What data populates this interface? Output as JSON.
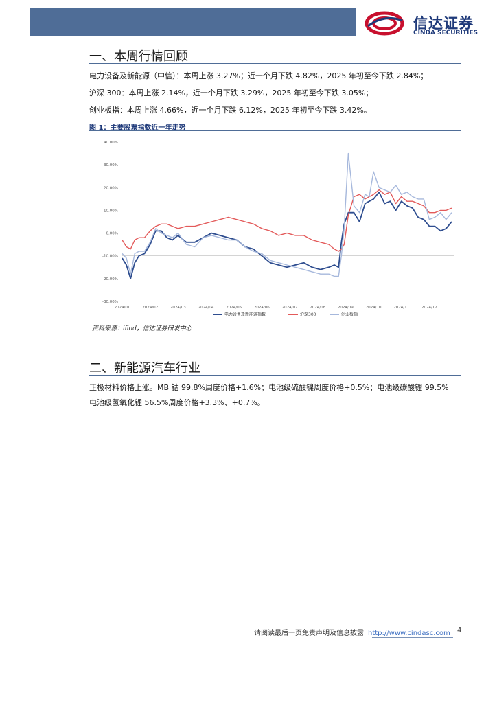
{
  "header": {
    "logo_cn": "信达证券",
    "logo_en": "CINDA SECURITIES"
  },
  "section1": {
    "title": "一、本周行情回顾",
    "lines": [
      "电力设备及新能源（中信）：本周上涨 3.27%；近一个月下跌 4.82%，2025 年初至今下跌 2.84%；",
      "沪深 300：本周上涨 2.14%，近一个月下跌 3.29%，2025 年初至今下跌 3.05%；",
      "创业板指：本周上涨 4.66%，近一个月下跌 6.12%，2025 年初至今下跌 3.42%。"
    ],
    "figure_title": "图 1：主要股票指数近一年走势",
    "source": "资料来源：ifind，信达证券研发中心"
  },
  "chart_data": {
    "type": "line",
    "title": "",
    "xlabel": "",
    "ylabel": "",
    "ylim": [
      -30,
      40
    ],
    "ytick_labels": [
      "40.00%",
      "30.00%",
      "20.00%",
      "10.00%",
      "0.00%",
      "-10.00%",
      "-20.00%",
      "-30.00%"
    ],
    "yticks": [
      40,
      30,
      20,
      10,
      0,
      -10,
      -20,
      -30
    ],
    "x_categories": [
      "2024/01",
      "2024/02",
      "2024/03",
      "2024/04",
      "2024/05",
      "2024/06",
      "2024/07",
      "2024/08",
      "2024/09",
      "2024/10",
      "2024/11",
      "2024/12"
    ],
    "x_positions": [
      0,
      1,
      2,
      3,
      4,
      5,
      6,
      7,
      8,
      9,
      10,
      11
    ],
    "x_range": [
      0,
      11.9
    ],
    "legend_position": "bottom",
    "grid": false,
    "series": [
      {
        "name": "电力设备及新能源指数",
        "color": "#2e4d8f",
        "x": [
          0,
          0.15,
          0.3,
          0.45,
          0.6,
          0.8,
          1.0,
          1.2,
          1.4,
          1.6,
          1.8,
          2.0,
          2.3,
          2.6,
          2.9,
          3.2,
          3.5,
          3.8,
          4.1,
          4.4,
          4.7,
          5.0,
          5.3,
          5.6,
          5.9,
          6.2,
          6.5,
          6.8,
          7.1,
          7.4,
          7.6,
          7.75,
          7.85,
          7.95,
          8.1,
          8.3,
          8.5,
          8.7,
          8.85,
          9.0,
          9.2,
          9.4,
          9.6,
          9.8,
          10.0,
          10.2,
          10.4,
          10.6,
          10.8,
          11.0,
          11.2,
          11.4,
          11.6,
          11.8
        ],
        "values": [
          -11,
          -14,
          -20,
          -13,
          -10,
          -9,
          -5,
          1,
          1,
          -2,
          -3,
          -1,
          -4,
          -4,
          -2,
          0,
          -1,
          -2,
          -3,
          -6,
          -7,
          -10,
          -13,
          -14,
          -15,
          -14,
          -13,
          -15,
          -16,
          -15,
          -14,
          -15,
          -4,
          4,
          9,
          9,
          5,
          13,
          14,
          15,
          18,
          13,
          14,
          10,
          14,
          12,
          11,
          7,
          6,
          3,
          3,
          1,
          2,
          5
        ]
      },
      {
        "name": "沪深300",
        "color": "#e35a5a",
        "x": [
          0,
          0.15,
          0.3,
          0.45,
          0.6,
          0.8,
          1.0,
          1.2,
          1.4,
          1.6,
          1.8,
          2.0,
          2.3,
          2.6,
          2.9,
          3.2,
          3.5,
          3.8,
          4.1,
          4.4,
          4.7,
          5.0,
          5.3,
          5.6,
          5.9,
          6.2,
          6.5,
          6.8,
          7.1,
          7.4,
          7.6,
          7.75,
          7.85,
          7.95,
          8.1,
          8.3,
          8.5,
          8.7,
          8.85,
          9.0,
          9.2,
          9.4,
          9.6,
          9.8,
          10.0,
          10.2,
          10.4,
          10.6,
          10.8,
          11.0,
          11.2,
          11.4,
          11.6,
          11.8
        ],
        "values": [
          -3,
          -6,
          -7,
          -3,
          -2,
          -2,
          1,
          3,
          4,
          4,
          3,
          2,
          3,
          3,
          4,
          5,
          6,
          7,
          6,
          5,
          4,
          2,
          1,
          -1,
          0,
          -1,
          -1,
          -3,
          -4,
          -5,
          -7,
          -8,
          -7,
          -5,
          8,
          16,
          17,
          15,
          16,
          17,
          19,
          17,
          18,
          13,
          16,
          14,
          14,
          13,
          12,
          9,
          9,
          10,
          10,
          11
        ]
      },
      {
        "name": "创业板指",
        "color": "#a6b8dc",
        "x": [
          0,
          0.15,
          0.3,
          0.45,
          0.6,
          0.8,
          1.0,
          1.2,
          1.4,
          1.6,
          1.8,
          2.0,
          2.3,
          2.6,
          2.9,
          3.2,
          3.5,
          3.8,
          4.1,
          4.4,
          4.7,
          5.0,
          5.3,
          5.6,
          5.9,
          6.2,
          6.5,
          6.8,
          7.1,
          7.4,
          7.6,
          7.75,
          7.85,
          7.95,
          8.1,
          8.3,
          8.5,
          8.7,
          8.85,
          9.0,
          9.2,
          9.4,
          9.6,
          9.8,
          10.0,
          10.2,
          10.4,
          10.6,
          10.8,
          11.0,
          11.2,
          11.4,
          11.6,
          11.8
        ],
        "values": [
          -9,
          -11,
          -18,
          -9,
          -8,
          -8,
          -4,
          2,
          0,
          -1,
          -2,
          0,
          -5,
          -6,
          -2,
          -1,
          -2,
          -3,
          -3,
          -6,
          -8,
          -9,
          -12,
          -13,
          -14,
          -15,
          -16,
          -17,
          -18,
          -18,
          -19,
          -19,
          -10,
          2,
          35,
          12,
          9,
          17,
          16,
          27,
          20,
          19,
          18,
          21,
          17,
          18,
          16,
          15,
          15,
          6,
          7,
          9,
          6,
          9
        ]
      }
    ]
  },
  "section2": {
    "title": "二、新能源汽车行业",
    "lines": [
      "正极材料价格上涨。MB 钴 99.8%周度价格+1.6%；电池级硫酸镍周度价格+0.5%；电池级碳酸锂 99.5%",
      "电池级氢氧化锂 56.5%周度价格+3.3%、+0.7%。"
    ]
  },
  "footer": {
    "notice": "请阅读最后一页免责声明及信息披露",
    "url": "http://www.cindasc.com",
    "page_number": "4"
  }
}
